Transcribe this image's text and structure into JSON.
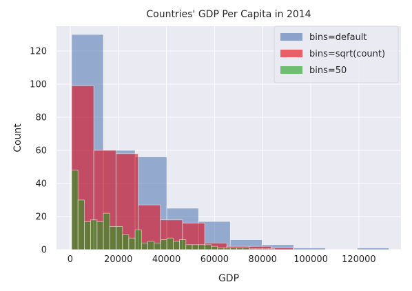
{
  "chart_data": {
    "type": "bar",
    "title": "Countries' GDP Per Capita in 2014",
    "xlabel": "GDP",
    "ylabel": "Count",
    "xlim": [
      -5700,
      137500
    ],
    "ylim": [
      0,
      135
    ],
    "x_ticks": [
      0,
      20000,
      40000,
      60000,
      80000,
      100000,
      120000
    ],
    "x_tick_labels": [
      "0",
      "20000",
      "40000",
      "60000",
      "80000",
      "100000",
      "120000"
    ],
    "y_ticks": [
      0,
      20,
      40,
      60,
      80,
      100,
      120
    ],
    "y_tick_labels": [
      "0",
      "20",
      "40",
      "60",
      "80",
      "100",
      "120"
    ],
    "grid": true,
    "legend_position": "top-right",
    "colors": {
      "background": "#eaeaf2",
      "grid": "#ffffff",
      "default": "#4c72b0",
      "sqrt": "#e8000b",
      "fifty": "#1a9e1a"
    },
    "series": [
      {
        "name": "bins=default",
        "color": "#4c72b0",
        "opacity": 0.55,
        "bin_start": 600,
        "bin_width": 13190,
        "values": [
          130,
          60,
          56,
          25,
          17,
          6,
          3,
          1,
          0,
          1
        ]
      },
      {
        "name": "bins=sqrt(count)",
        "color": "#e8000b",
        "opacity": 0.55,
        "bin_start": 600,
        "bin_width": 9215,
        "values": [
          99,
          60,
          58,
          27,
          18,
          16,
          4,
          2,
          2,
          1,
          0,
          0,
          0,
          0
        ]
      },
      {
        "name": "bins=50",
        "color": "#1a9e1a",
        "opacity": 0.55,
        "bin_start": 600,
        "bin_width": 2638,
        "values": [
          48,
          30,
          17,
          18,
          17,
          22,
          14,
          14,
          9,
          7,
          12,
          4,
          5,
          4,
          6,
          7,
          5,
          6,
          3,
          3,
          3,
          3,
          2,
          1,
          1,
          1,
          1,
          1,
          0.5,
          0.5,
          0.5,
          0.5,
          0,
          0,
          0,
          0,
          0,
          0,
          0,
          0,
          0,
          0,
          0,
          0,
          0,
          0,
          0,
          0,
          0,
          0
        ]
      }
    ]
  }
}
